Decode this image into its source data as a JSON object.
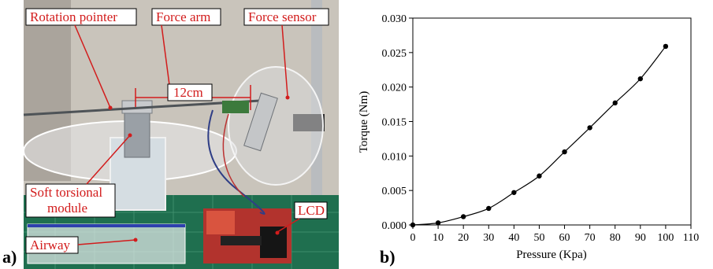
{
  "figure": {
    "panel_a": {
      "letter": "a)",
      "labels": {
        "rotation_pointer": "Rotation pointer",
        "force_arm": "Force arm",
        "force_sensor": "Force sensor",
        "length": "12cm",
        "soft_module_line1": "Soft torsional",
        "soft_module_line2": "module",
        "lcd": "LCD",
        "airway": "Airway"
      },
      "colors": {
        "callout_red": "#d21c1c",
        "background_wall": "#c9c4bb",
        "mat_green": "#1f6f4f"
      }
    },
    "panel_b": {
      "letter": "b)"
    }
  },
  "chart_data": {
    "type": "line",
    "xlabel": "Pressure (Kpa)",
    "ylabel": "Torque (Nm)",
    "xlim": [
      0,
      110
    ],
    "ylim": [
      0,
      0.03
    ],
    "xticks": [
      "0",
      "10",
      "20",
      "30",
      "40",
      "50",
      "60",
      "70",
      "80",
      "90",
      "100",
      "110"
    ],
    "yticks": [
      "0.000",
      "0.005",
      "0.010",
      "0.015",
      "0.020",
      "0.025",
      "0.030"
    ],
    "grid": false,
    "series": [
      {
        "x": [
          0,
          10,
          20,
          30,
          40,
          50,
          60,
          70,
          80,
          90,
          100
        ],
        "y": [
          0.0,
          0.0003,
          0.0012,
          0.0024,
          0.0047,
          0.0071,
          0.0106,
          0.0141,
          0.0177,
          0.0212,
          0.0259
        ],
        "color": "#000000",
        "marker": "circle"
      }
    ]
  }
}
